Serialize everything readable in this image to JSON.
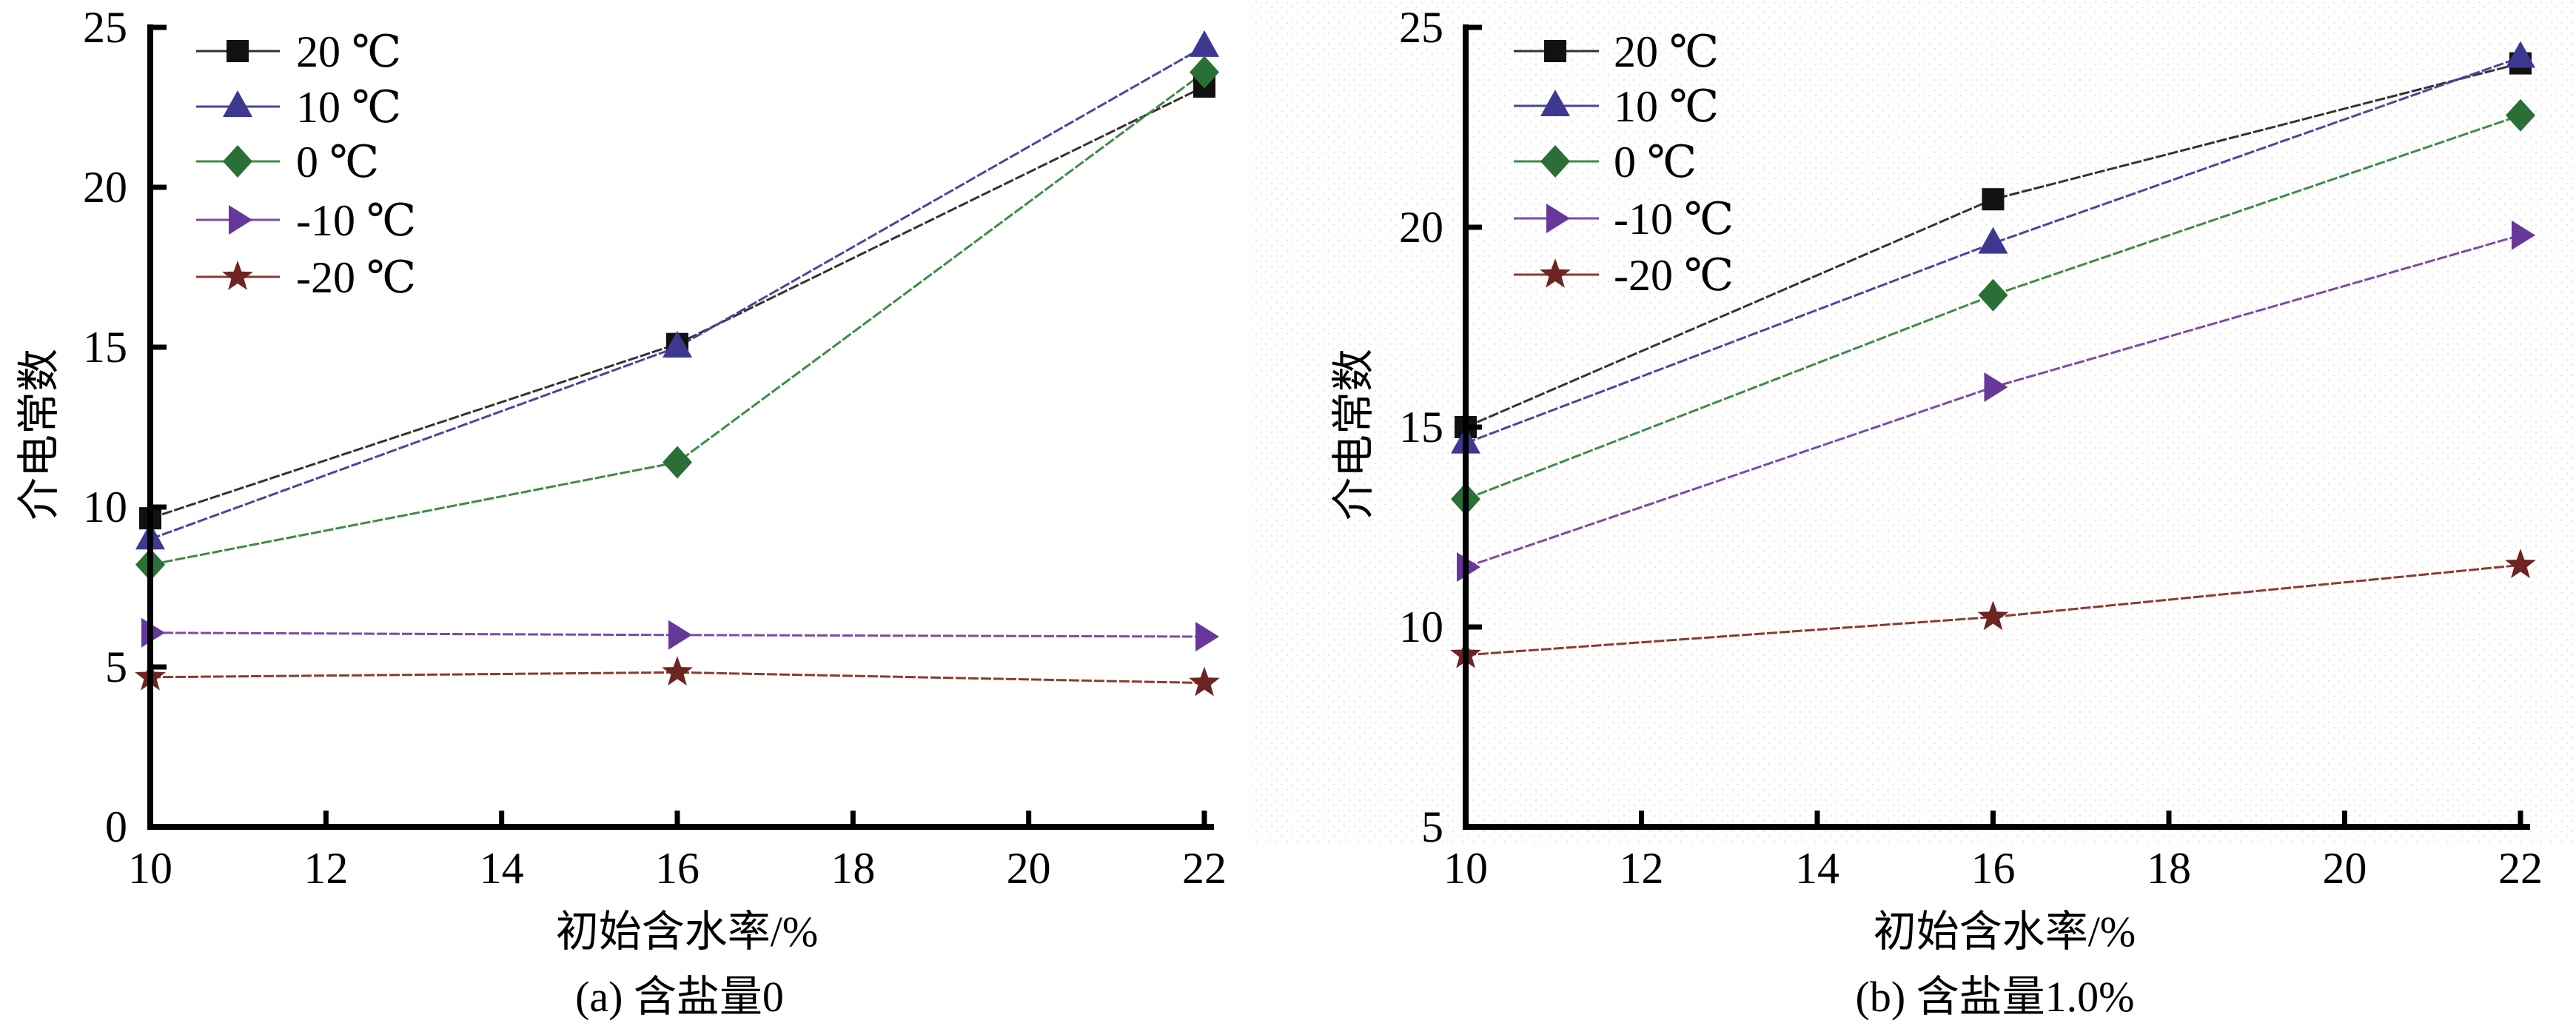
{
  "chart_data": [
    {
      "type": "line",
      "panel": "a",
      "caption": "(a) 含盐量0",
      "xlabel": "初始含水率/%",
      "ylabel": "介电常数",
      "xlim": [
        10,
        22
      ],
      "ylim": [
        0,
        25
      ],
      "xticks": [
        10,
        12,
        14,
        16,
        18,
        20,
        22
      ],
      "yticks": [
        0,
        5,
        10,
        15,
        20,
        25
      ],
      "grid": false,
      "legend_position": "top-left",
      "x": [
        10,
        16,
        22
      ],
      "series": [
        {
          "name": "20 ℃",
          "marker": "square",
          "line_color": "#3a2f2f",
          "marker_color": "#111111",
          "values": [
            9.65,
            15.1,
            23.15
          ]
        },
        {
          "name": "10 ℃",
          "marker": "triangle-up",
          "line_color": "#4a44a0",
          "marker_color": "#3d3890",
          "values": [
            9.0,
            15.0,
            24.4
          ]
        },
        {
          "name": "0 ℃",
          "marker": "diamond",
          "line_color": "#3c8c45",
          "marker_color": "#2a7036",
          "values": [
            8.2,
            11.4,
            23.6
          ]
        },
        {
          "name": "-10 ℃",
          "marker": "triangle-right",
          "line_color": "#7a4aa8",
          "marker_color": "#66389a",
          "values": [
            6.07,
            6.0,
            5.95
          ]
        },
        {
          "name": "-20 ℃",
          "marker": "star",
          "line_color": "#8a3a32",
          "marker_color": "#6e2420",
          "values": [
            4.68,
            4.83,
            4.5
          ]
        }
      ]
    },
    {
      "type": "line",
      "panel": "b",
      "caption": "(b) 含盐量1.0%",
      "xlabel": "初始含水率/%",
      "ylabel": "介电常数",
      "xlim": [
        10,
        22
      ],
      "ylim": [
        5,
        25
      ],
      "xticks": [
        10,
        12,
        14,
        16,
        18,
        20,
        22
      ],
      "yticks": [
        5,
        10,
        15,
        20,
        25
      ],
      "grid": false,
      "legend_position": "top-left",
      "x": [
        10,
        16,
        22
      ],
      "series": [
        {
          "name": "20 ℃",
          "marker": "square",
          "line_color": "#3a2f2f",
          "marker_color": "#111111",
          "values": [
            15.0,
            20.7,
            24.1
          ]
        },
        {
          "name": "10 ℃",
          "marker": "triangle-up",
          "line_color": "#4a44a0",
          "marker_color": "#3d3890",
          "values": [
            14.6,
            19.6,
            24.25
          ]
        },
        {
          "name": "0 ℃",
          "marker": "diamond",
          "line_color": "#3c8c45",
          "marker_color": "#2a7036",
          "values": [
            13.2,
            18.3,
            22.8
          ]
        },
        {
          "name": "-10 ℃",
          "marker": "triangle-right",
          "line_color": "#7a4aa8",
          "marker_color": "#66389a",
          "values": [
            11.5,
            16.0,
            19.8
          ]
        },
        {
          "name": "-20 ℃",
          "marker": "star",
          "line_color": "#8a3a32",
          "marker_color": "#6e2420",
          "values": [
            9.3,
            10.25,
            11.55
          ]
        }
      ]
    }
  ]
}
